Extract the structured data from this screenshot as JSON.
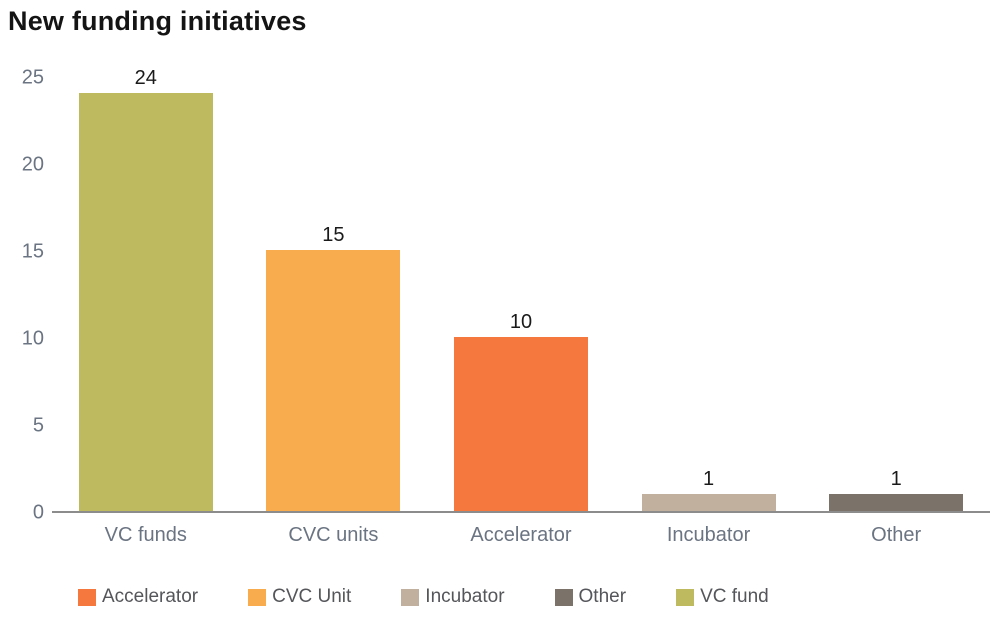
{
  "title": "New funding initiatives",
  "chart_data": {
    "type": "bar",
    "title": "New funding initiatives",
    "categories": [
      "VC funds",
      "CVC units",
      "Accelerator",
      "Incubator",
      "Other"
    ],
    "values": [
      24,
      15,
      10,
      1,
      1
    ],
    "bar_colors": [
      "#bdba5f",
      "#f9ac4d",
      "#f5793f",
      "#c0b09d",
      "#7b7369"
    ],
    "xlabel": "",
    "ylabel": "",
    "ylim": [
      0,
      25
    ],
    "yticks": [
      0,
      5,
      10,
      15,
      20,
      25
    ],
    "grid": false,
    "value_labels_shown": true,
    "legend_position": "bottom",
    "legend": [
      {
        "label": "Accelerator",
        "color": "#f5793f"
      },
      {
        "label": "CVC Unit",
        "color": "#f9ac4d"
      },
      {
        "label": "Incubator",
        "color": "#c0b09d"
      },
      {
        "label": "Other",
        "color": "#7b7369"
      },
      {
        "label": "VC fund",
        "color": "#bdba5f"
      }
    ]
  },
  "colors": {
    "background": "#ffffff",
    "title_text": "#141414",
    "axis_label_text": "#6b7482",
    "value_label_text": "#1a1a1a",
    "legend_text": "#55565a",
    "axis_line": "#8c8c8c"
  }
}
